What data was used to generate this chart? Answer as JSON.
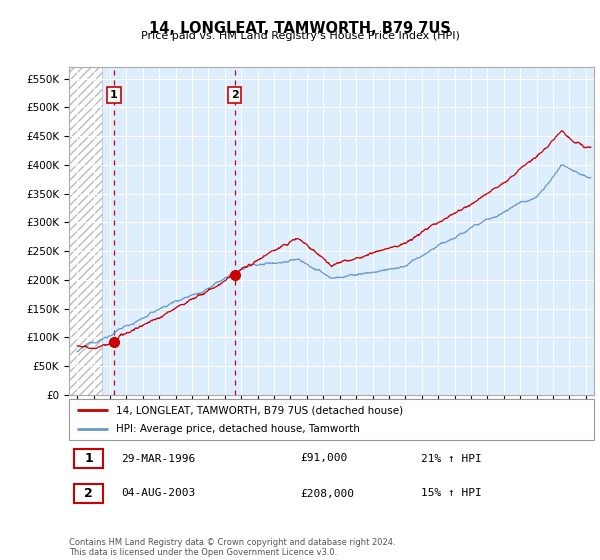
{
  "title": "14, LONGLEAT, TAMWORTH, B79 7US",
  "subtitle": "Price paid vs. HM Land Registry's House Price Index (HPI)",
  "legend_line1": "14, LONGLEAT, TAMWORTH, B79 7US (detached house)",
  "legend_line2": "HPI: Average price, detached house, Tamworth",
  "annotation1_date": "29-MAR-1996",
  "annotation1_price": "£91,000",
  "annotation1_hpi": "21% ↑ HPI",
  "annotation1_year": 1996.24,
  "annotation1_value": 91000,
  "annotation2_date": "04-AUG-2003",
  "annotation2_price": "£208,000",
  "annotation2_hpi": "15% ↑ HPI",
  "annotation2_year": 2003.59,
  "annotation2_value": 208000,
  "line_color_red": "#cc0000",
  "line_color_blue": "#6699cc",
  "marker_color": "#cc0000",
  "background_color": "#ffffff",
  "plot_bg_color": "#ddeeff",
  "grid_color": "#ffffff",
  "ylim": [
    0,
    570000
  ],
  "yticks": [
    0,
    50000,
    100000,
    150000,
    200000,
    250000,
    300000,
    350000,
    400000,
    450000,
    500000,
    550000
  ],
  "xlim_start": 1993.5,
  "xlim_end": 2025.5,
  "hatch_region_end": 1995.5,
  "footnote": "Contains HM Land Registry data © Crown copyright and database right 2024.\nThis data is licensed under the Open Government Licence v3.0."
}
